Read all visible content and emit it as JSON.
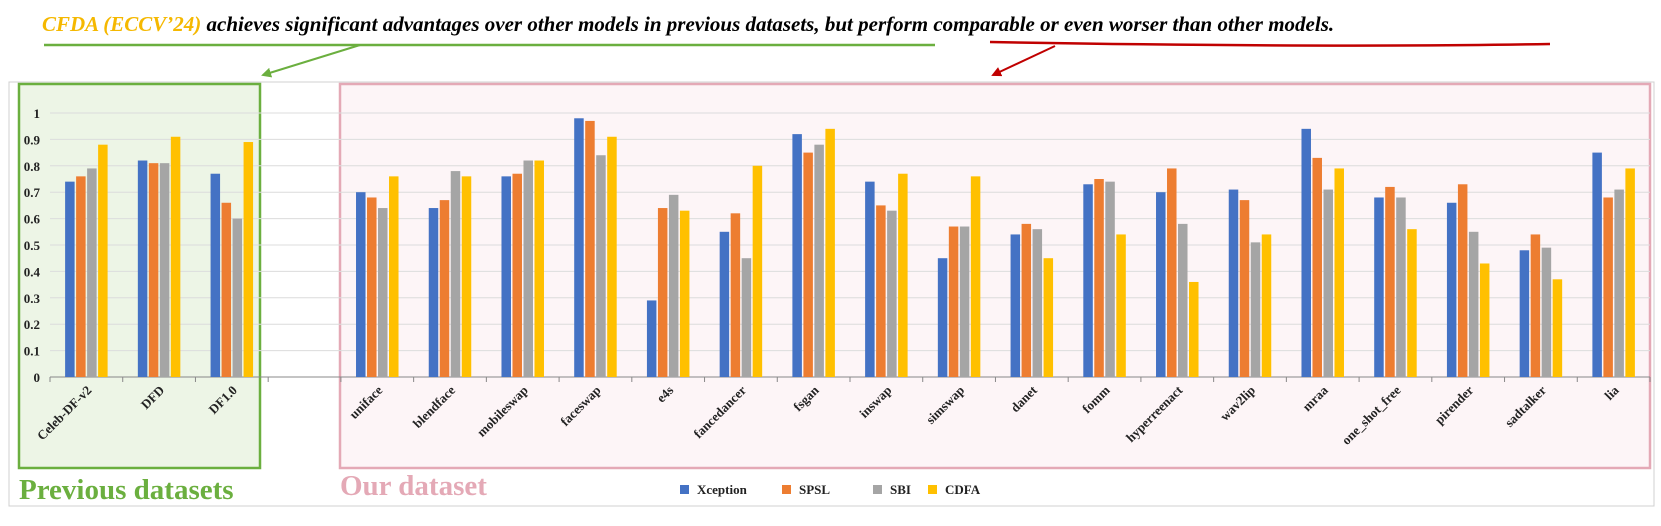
{
  "header": {
    "highlight": "CFDA (ECCV’24)",
    "text": " achieves significant advantages over other models in previous datasets, but perform comparable or even worser than other models."
  },
  "regions": {
    "previous_label": "Previous datasets",
    "ours_label": "Our dataset"
  },
  "colors": {
    "highlight": "#F5B800",
    "green": "#6BAF3F",
    "red": "#C00000",
    "pink": "#E4A9B6",
    "green_fill": "#EDF5E6",
    "pink_fill": "#FDF5F7"
  },
  "chart_data": {
    "type": "bar",
    "ylim": [
      0,
      1
    ],
    "yticks": [
      "0",
      "0.1",
      "0.2",
      "0.3",
      "0.4",
      "0.5",
      "0.6",
      "0.7",
      "0.8",
      "0.9",
      "1"
    ],
    "categories": [
      "Celeb-DF-v2",
      "DFD",
      "DF1.0",
      "",
      "uniface",
      "blendface",
      "mobileswap",
      "faceswap",
      "e4s",
      "fancedancer",
      "fsgan",
      "inswap",
      "simswap",
      "danet",
      "fomm",
      "hyperreenact",
      "wav2lip",
      "mraa",
      "one_shot_free",
      "pirender",
      "sadtalker",
      "lia"
    ],
    "series": [
      {
        "name": "Xception",
        "color": "#4472C4",
        "values": [
          0.74,
          0.82,
          0.77,
          null,
          0.7,
          0.64,
          0.76,
          0.98,
          0.29,
          0.55,
          0.92,
          0.74,
          0.45,
          0.54,
          0.73,
          0.7,
          0.71,
          0.94,
          0.68,
          0.66,
          0.48,
          0.85
        ]
      },
      {
        "name": "SPSL",
        "color": "#ED7D31",
        "values": [
          0.76,
          0.81,
          0.66,
          null,
          0.68,
          0.67,
          0.77,
          0.97,
          0.64,
          0.62,
          0.85,
          0.65,
          0.57,
          0.58,
          0.75,
          0.79,
          0.67,
          0.83,
          0.72,
          0.73,
          0.54,
          0.68
        ]
      },
      {
        "name": "SBI",
        "color": "#A5A5A5",
        "values": [
          0.79,
          0.81,
          0.6,
          null,
          0.64,
          0.78,
          0.82,
          0.84,
          0.69,
          0.45,
          0.88,
          0.63,
          0.57,
          0.56,
          0.74,
          0.58,
          0.51,
          0.71,
          0.68,
          0.55,
          0.49,
          0.71
        ]
      },
      {
        "name": "CDFA",
        "color": "#FFC000",
        "values": [
          0.88,
          0.91,
          0.89,
          null,
          0.76,
          0.76,
          0.82,
          0.91,
          0.63,
          0.8,
          0.94,
          0.77,
          0.76,
          0.45,
          0.54,
          0.36,
          0.54,
          0.79,
          0.56,
          0.43,
          0.37,
          0.79
        ]
      }
    ]
  }
}
